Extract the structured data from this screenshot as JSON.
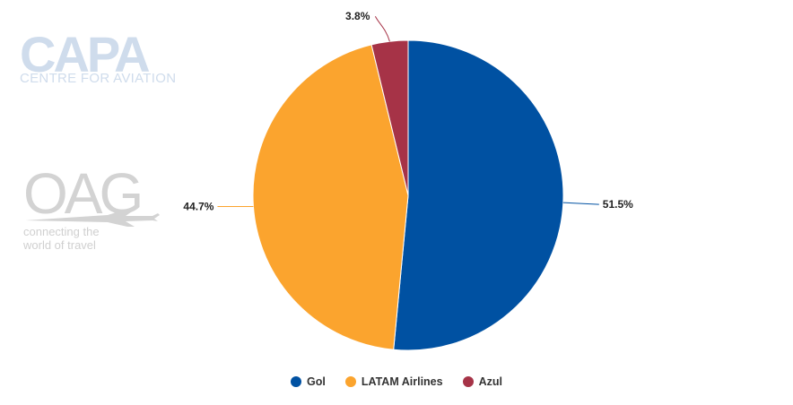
{
  "logos": {
    "capa": {
      "name": "CAPA",
      "tagline": "CENTRE FOR AVIATION"
    },
    "oag": {
      "name": "OAG",
      "tagline_line1": "connecting the",
      "tagline_line2": "world of travel"
    }
  },
  "chart_data": {
    "type": "pie",
    "labels": [
      "Gol",
      "LATAM Airlines",
      "Azul"
    ],
    "values": [
      51.5,
      44.7,
      3.8
    ],
    "data_labels": [
      "51.5%",
      "44.7%",
      "3.8%"
    ],
    "colors": [
      "#0051a2",
      "#fba42e",
      "#a63347"
    ],
    "legend_position": "bottom-center"
  }
}
